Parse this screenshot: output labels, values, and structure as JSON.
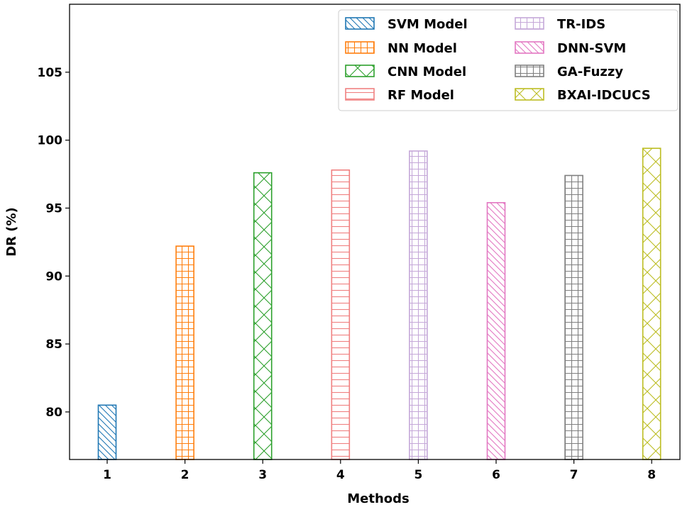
{
  "chart_data": {
    "type": "bar",
    "title": "",
    "xlabel": "Methods",
    "ylabel": "DR (%)",
    "ylim": [
      76.5,
      110
    ],
    "yticks": [
      80,
      85,
      90,
      95,
      100,
      105
    ],
    "categories": [
      "1",
      "2",
      "3",
      "4",
      "5",
      "6",
      "7",
      "8"
    ],
    "legend_position": "top-right",
    "series": [
      {
        "name": "SVM Model",
        "category": "1",
        "value": 80.5,
        "color": "#1f77b4",
        "hatch": "diagonal"
      },
      {
        "name": "NN Model",
        "category": "2",
        "value": 92.2,
        "color": "#ff7f0e",
        "hatch": "grid"
      },
      {
        "name": "CNN Model",
        "category": "3",
        "value": 97.6,
        "color": "#2ca02c",
        "hatch": "cross"
      },
      {
        "name": "RF Model",
        "category": "4",
        "value": 97.8,
        "color": "#f08080",
        "hatch": "horizontal"
      },
      {
        "name": "TR-IDS",
        "category": "5",
        "value": 99.2,
        "color": "#c5a8d8",
        "hatch": "grid"
      },
      {
        "name": "DNN-SVM",
        "category": "6",
        "value": 95.4,
        "color": "#e377c2",
        "hatch": "diagonal"
      },
      {
        "name": "GA-Fuzzy",
        "category": "7",
        "value": 97.4,
        "color": "#7f7f7f",
        "hatch": "grid"
      },
      {
        "name": "BXAI-IDCUCS",
        "category": "8",
        "value": 99.4,
        "color": "#bcbd22",
        "hatch": "cross"
      }
    ]
  }
}
